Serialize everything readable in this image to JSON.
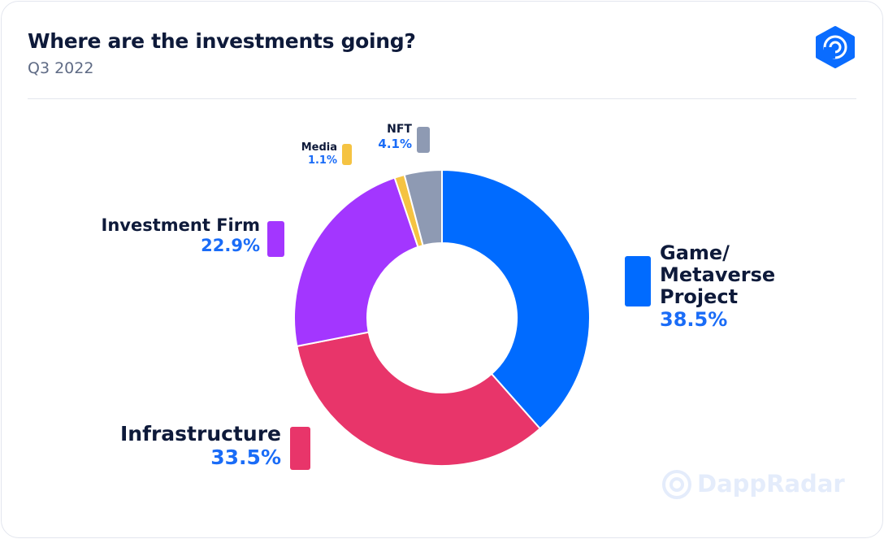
{
  "chart_data": {
    "type": "donut",
    "title": "Where are the investments going?",
    "subtitle": "Q3 2022",
    "categories": [
      "Game/ Metaverse Project",
      "Infrastructure",
      "Investment Firm",
      "Media",
      "NFT"
    ],
    "values": [
      38.5,
      33.5,
      22.9,
      1.1,
      4.1
    ],
    "value_labels": [
      "38.5%",
      "33.5%",
      "22.9%",
      "1.1%",
      "4.1%"
    ],
    "colors": [
      "#006bff",
      "#e8356a",
      "#a336ff",
      "#f5c342",
      "#8e9ab3"
    ],
    "watermark": "DappRadar"
  }
}
